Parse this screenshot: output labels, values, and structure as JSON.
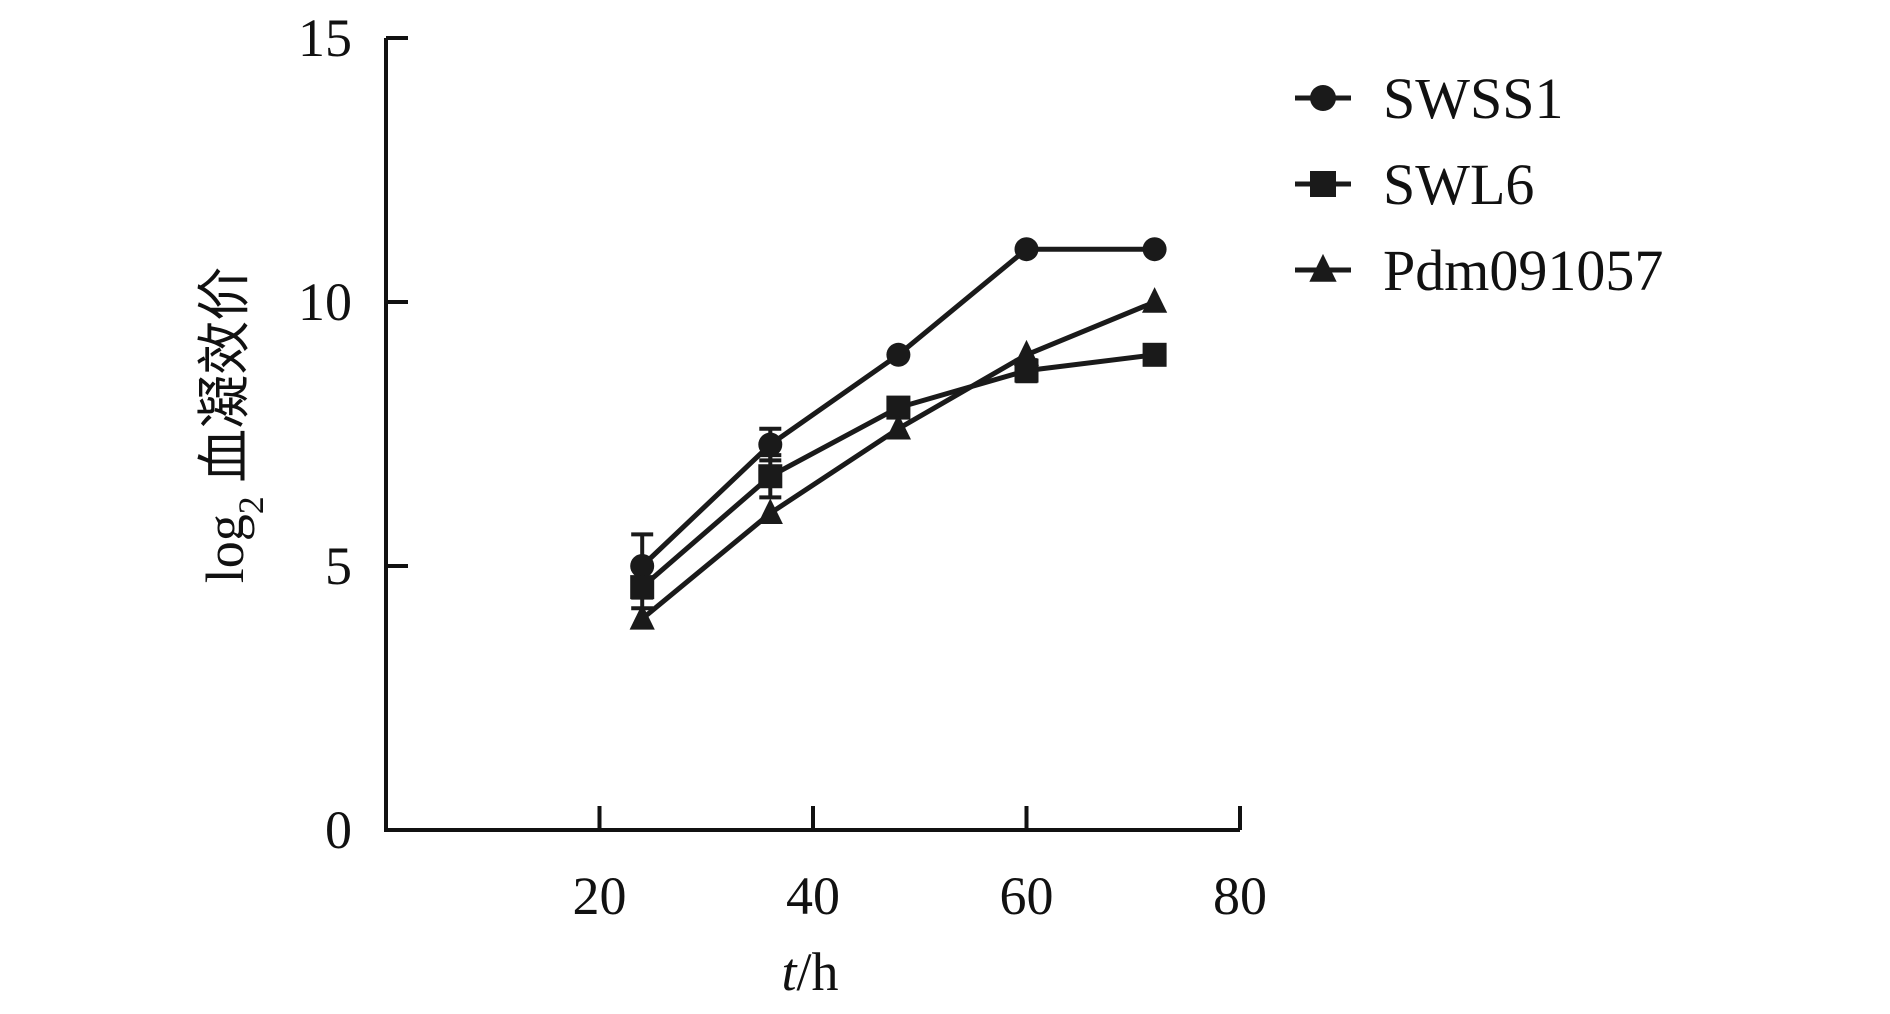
{
  "chart_data": {
    "type": "line",
    "title": "",
    "xlabel_italic": "t",
    "xlabel_rest": "/h",
    "ylabel_prefix": "log",
    "ylabel_sub": "2",
    "ylabel_rest": " 血凝效价",
    "xlim": [
      0,
      80
    ],
    "ylim": [
      0,
      15
    ],
    "x_ticks": [
      20,
      40,
      60,
      80
    ],
    "y_ticks": [
      0,
      5,
      10,
      15
    ],
    "grid": false,
    "legend_position": "top-right",
    "series": [
      {
        "name": "SWSS1",
        "marker": "circle",
        "x": [
          24,
          36,
          48,
          60,
          72
        ],
        "y": [
          5.0,
          7.3,
          9.0,
          11.0,
          11.0
        ],
        "err": [
          0.6,
          0.3,
          0,
          0,
          0
        ]
      },
      {
        "name": "SWL6",
        "marker": "square",
        "x": [
          24,
          36,
          48,
          60,
          72
        ],
        "y": [
          4.6,
          6.7,
          8.0,
          8.7,
          9.0
        ],
        "err": [
          0.4,
          0.4,
          0,
          0.2,
          0
        ]
      },
      {
        "name": "Pdm091057",
        "marker": "triangle",
        "x": [
          24,
          36,
          48,
          60,
          72
        ],
        "y": [
          4.0,
          6.0,
          7.6,
          9.0,
          10.0
        ],
        "err": [
          0,
          0,
          0,
          0,
          0
        ]
      }
    ],
    "colors": {
      "line": "#1a1a1a",
      "axis": "#111111"
    }
  }
}
